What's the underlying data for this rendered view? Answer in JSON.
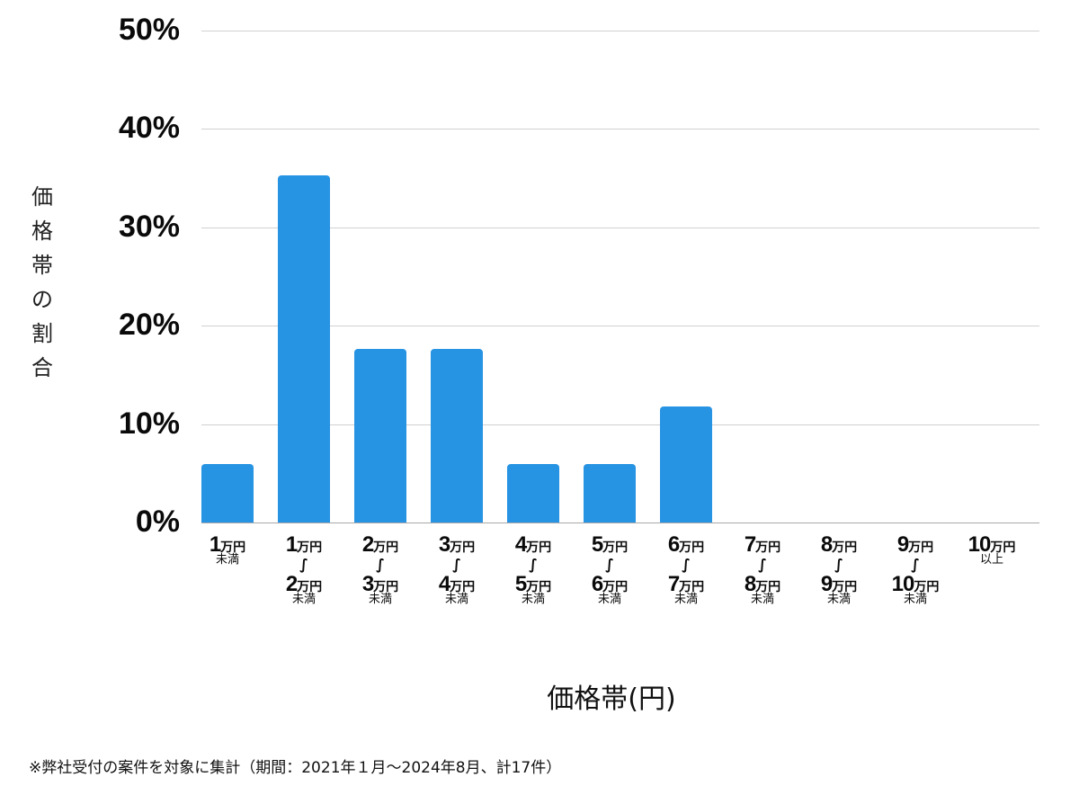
{
  "chart_data": {
    "type": "bar",
    "title": "",
    "xlabel": "価格帯(円)",
    "ylabel": "価格帯の割合",
    "ylim": [
      0,
      50
    ],
    "yticks": [
      "0%",
      "10%",
      "20%",
      "30%",
      "40%",
      "50%"
    ],
    "grid": true,
    "legend": null,
    "color": "#2793e3",
    "categories": [
      "1万円未満",
      "1万円〜2万円未満",
      "2万円〜3万円未満",
      "3万円〜4万円未満",
      "4万円〜5万円未満",
      "5万円〜6万円未満",
      "6万円〜7万円未満",
      "7万円〜8万円未満",
      "8万円〜9万円未満",
      "9万円〜10万円未満",
      "10万円以上"
    ],
    "values": [
      5.9,
      35.3,
      17.6,
      17.6,
      5.9,
      5.9,
      11.8,
      0,
      0,
      0,
      0
    ],
    "counts": [
      1,
      6,
      3,
      3,
      1,
      1,
      2,
      0,
      0,
      0,
      0
    ],
    "total_count": 17
  },
  "axis": {
    "ylabel_chars": [
      "価",
      "格",
      "帯",
      "の",
      "割",
      "合"
    ],
    "yticks": [
      {
        "label": "50%",
        "value": 50
      },
      {
        "label": "40%",
        "value": 40
      },
      {
        "label": "30%",
        "value": 30
      },
      {
        "label": "20%",
        "value": 20
      },
      {
        "label": "10%",
        "value": 10
      },
      {
        "label": "0%",
        "value": 0
      }
    ],
    "xlabel": "価格帯(円)"
  },
  "xcats": [
    {
      "from": "1",
      "unit": "万円",
      "tilde": "",
      "to": "",
      "to_unit": "",
      "suffix": "未満"
    },
    {
      "from": "1",
      "unit": "万円",
      "tilde": "〜",
      "to": "2",
      "to_unit": "万円",
      "suffix": "未満"
    },
    {
      "from": "2",
      "unit": "万円",
      "tilde": "〜",
      "to": "3",
      "to_unit": "万円",
      "suffix": "未満"
    },
    {
      "from": "3",
      "unit": "万円",
      "tilde": "〜",
      "to": "4",
      "to_unit": "万円",
      "suffix": "未満"
    },
    {
      "from": "4",
      "unit": "万円",
      "tilde": "〜",
      "to": "5",
      "to_unit": "万円",
      "suffix": "未満"
    },
    {
      "from": "5",
      "unit": "万円",
      "tilde": "〜",
      "to": "6",
      "to_unit": "万円",
      "suffix": "未満"
    },
    {
      "from": "6",
      "unit": "万円",
      "tilde": "〜",
      "to": "7",
      "to_unit": "万円",
      "suffix": "未満"
    },
    {
      "from": "7",
      "unit": "万円",
      "tilde": "〜",
      "to": "8",
      "to_unit": "万円",
      "suffix": "未満"
    },
    {
      "from": "8",
      "unit": "万円",
      "tilde": "〜",
      "to": "9",
      "to_unit": "万円",
      "suffix": "未満"
    },
    {
      "from": "9",
      "unit": "万円",
      "tilde": "〜",
      "to": "10",
      "to_unit": "万円",
      "suffix": "未満"
    },
    {
      "from": "10",
      "unit": "万円",
      "tilde": "",
      "to": "",
      "to_unit": "",
      "suffix": "以上"
    }
  ],
  "footnote": "※弊社受付の案件を対象に集計（期間：2021年１月〜2024年8月、計17件）"
}
